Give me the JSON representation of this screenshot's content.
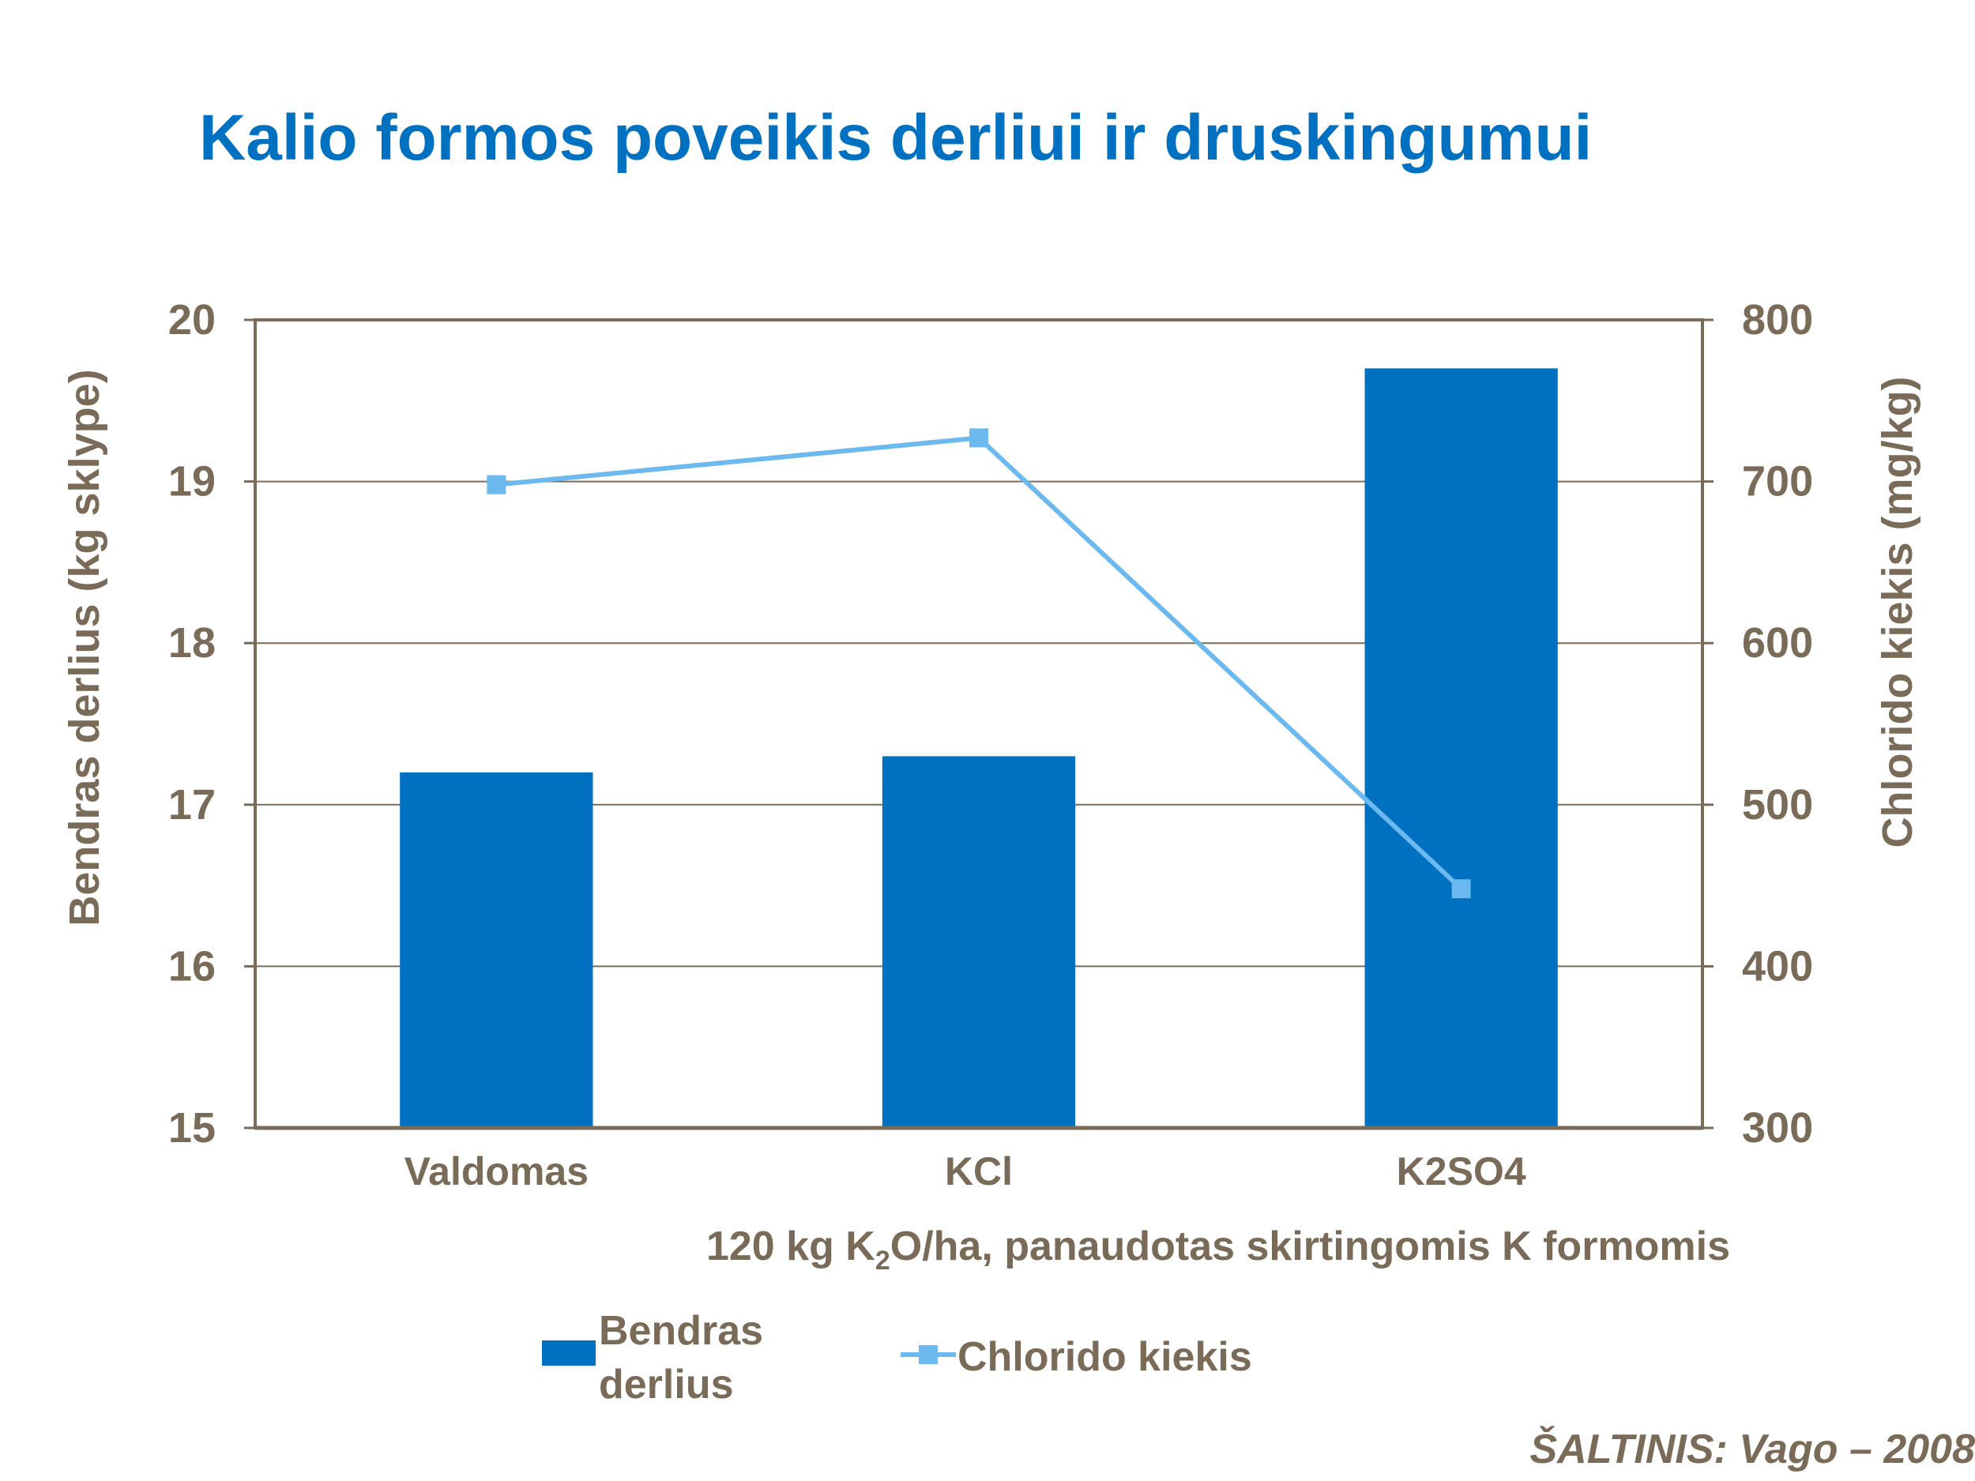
{
  "slide": {
    "title": "Kalio formos poveikis derliui ir druskingumui",
    "source": "ŠALTINIS: Vago – 2008"
  },
  "colors": {
    "title": "#0070c0",
    "text": "#7a6a58",
    "bar": "#0070c0",
    "line": "#6cb9f0",
    "grid": "#7a6a58"
  },
  "chart_data": {
    "type": "bar",
    "categories": [
      "Valdomas",
      "KCl",
      "K2SO4"
    ],
    "xlabel": {
      "pre": "120 kg K",
      "sub": "2",
      "post": "O/ha, panaudotas skirtingomis K formomis"
    },
    "ylabel": "Bendras derlius (kg sklype)",
    "y2label": "Chlorido kiekis (mg/kg)",
    "ylim": [
      15,
      20
    ],
    "y2lim": [
      300,
      800
    ],
    "yticks": [
      15,
      16,
      17,
      18,
      19,
      20
    ],
    "y2ticks": [
      300,
      400,
      500,
      600,
      700,
      800
    ],
    "grid": true,
    "legend_position": "bottom",
    "series": [
      {
        "name": "Bendras derlius",
        "legend_lines": [
          "Bendras",
          "derlius"
        ],
        "type": "bar",
        "axis": "left",
        "values": [
          17.2,
          17.3,
          19.7
        ]
      },
      {
        "name": "Chlorido kiekis",
        "type": "line",
        "axis": "right",
        "marker": "square",
        "values": [
          698,
          727,
          448
        ]
      }
    ]
  }
}
